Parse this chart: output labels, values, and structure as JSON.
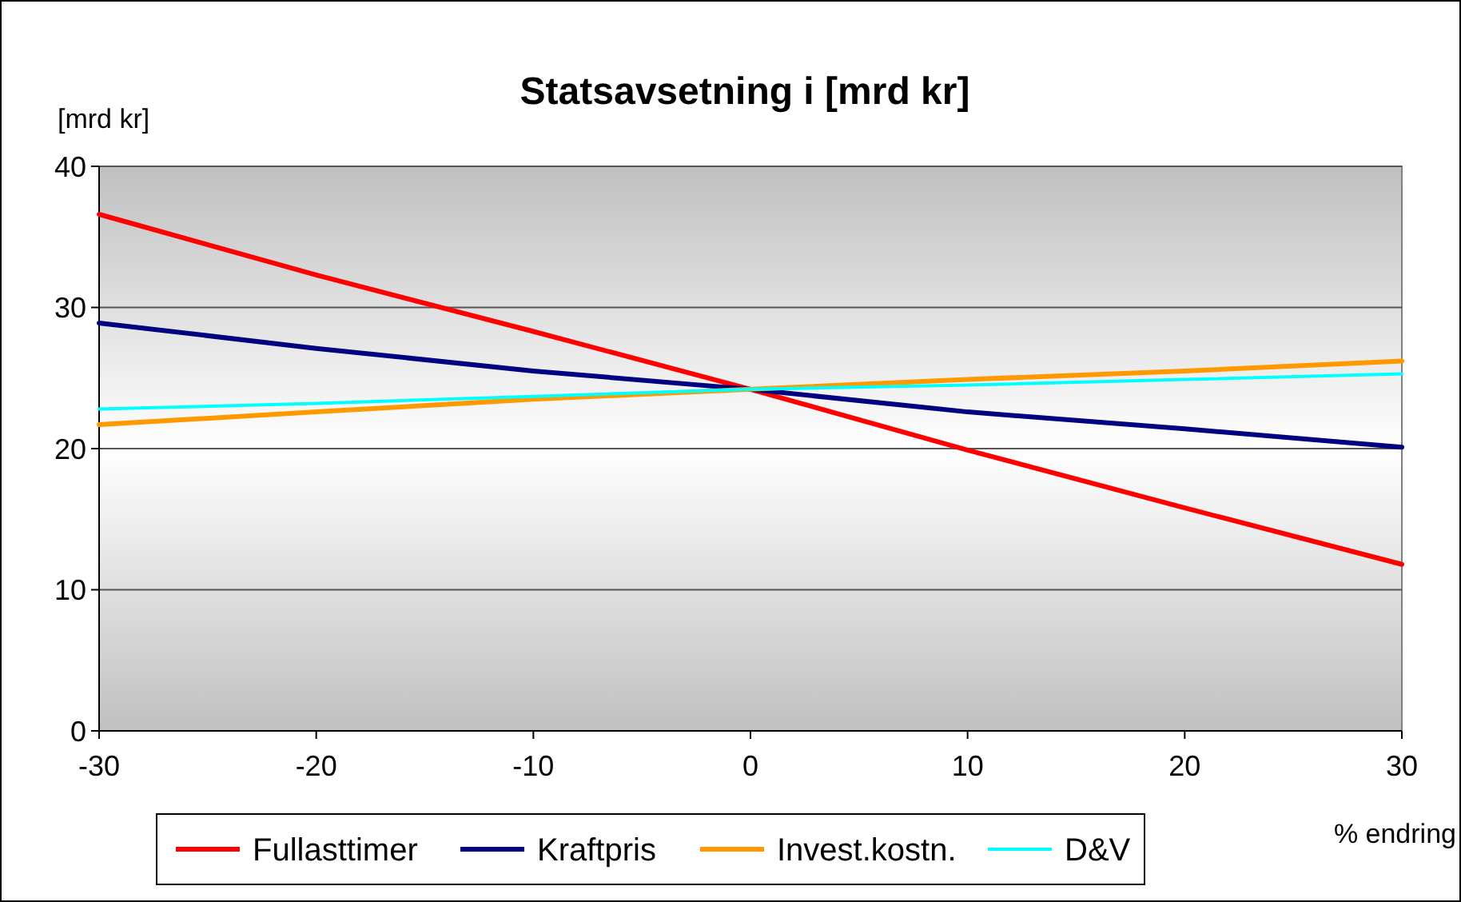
{
  "chart_data": {
    "type": "line",
    "title": "Statsavsetning i [mrd kr]",
    "ylabel": "[mrd kr]",
    "xlabel": "% endring",
    "x": [
      -30,
      -20,
      -10,
      0,
      10,
      20,
      30
    ],
    "series": [
      {
        "name": "Fullasttimer",
        "color": "#ff0000",
        "values": [
          36.6,
          32.3,
          28.3,
          24.2,
          19.9,
          15.8,
          11.8
        ]
      },
      {
        "name": "Kraftpris",
        "color": "#000080",
        "values": [
          28.9,
          27.1,
          25.5,
          24.2,
          22.6,
          21.4,
          20.1
        ]
      },
      {
        "name": "Invest.kostn.",
        "color": "#ff9900",
        "values": [
          21.7,
          22.6,
          23.5,
          24.2,
          24.9,
          25.5,
          26.2
        ]
      },
      {
        "name": "D&V",
        "color": "#00ffff",
        "values": [
          22.8,
          23.2,
          23.7,
          24.2,
          24.5,
          24.9,
          25.3
        ]
      }
    ],
    "xlim": [
      -30,
      30
    ],
    "xticks": [
      -30,
      -20,
      -10,
      0,
      10,
      20,
      30
    ],
    "ylim": [
      0,
      40
    ],
    "yticks": [
      0,
      10,
      20,
      30,
      40
    ],
    "grid": "y",
    "legend": "bottom",
    "marker": "none",
    "line_style": "solid"
  }
}
